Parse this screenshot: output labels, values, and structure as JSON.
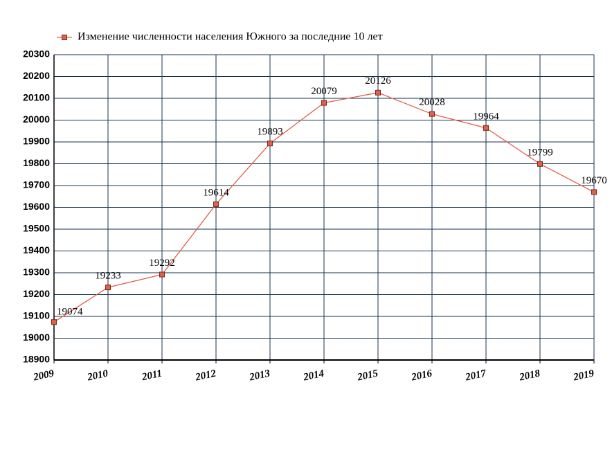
{
  "chart_data": {
    "type": "line",
    "x": [
      2009,
      2010,
      2011,
      2012,
      2013,
      2014,
      2015,
      2016,
      2017,
      2018,
      2019
    ],
    "series": [
      {
        "name": "Изменение численности населения Южного за последние 10 лет",
        "color": "#e0604a",
        "values": [
          19074,
          19233,
          19292,
          19614,
          19893,
          20079,
          20126,
          20028,
          19964,
          19799,
          19670
        ]
      }
    ],
    "xlim": [
      2009,
      2019
    ],
    "xticks": [
      2009,
      2010,
      2011,
      2012,
      2013,
      2014,
      2015,
      2016,
      2017,
      2018,
      2019
    ],
    "ylim": [
      18900,
      20300
    ],
    "yticks": [
      18900,
      19000,
      19100,
      19200,
      19300,
      19400,
      19500,
      19600,
      19700,
      19800,
      19900,
      20000,
      20100,
      20200,
      20300
    ],
    "grid": true,
    "legend": "top"
  }
}
